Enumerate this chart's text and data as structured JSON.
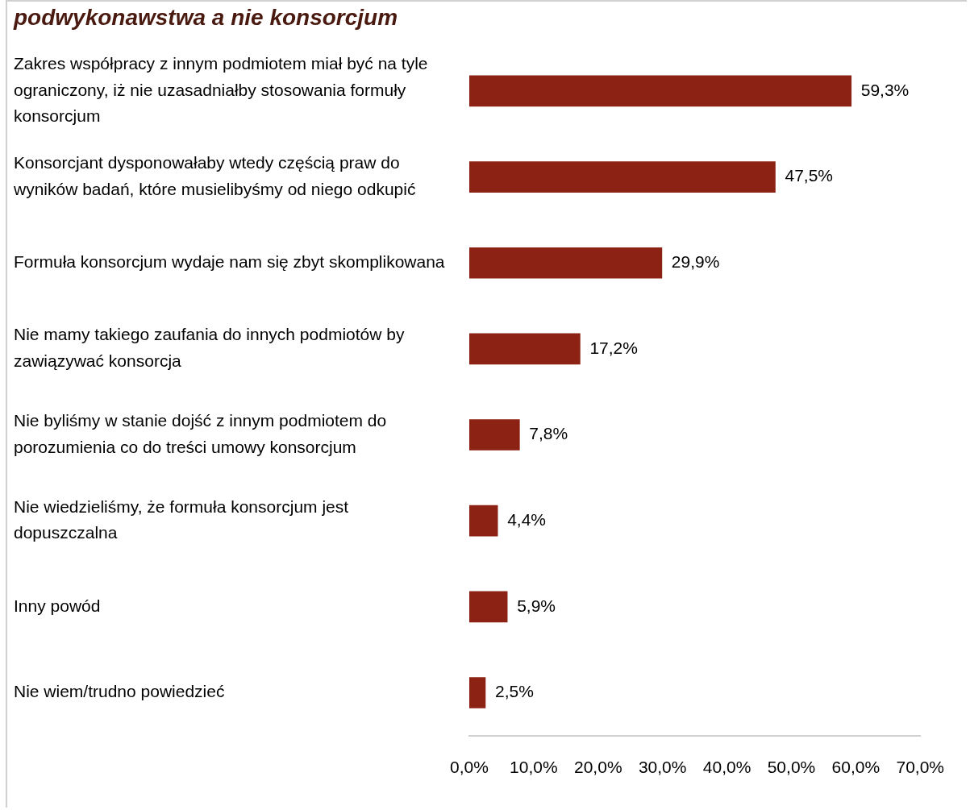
{
  "chart_data": {
    "type": "bar",
    "orientation": "horizontal",
    "title": "podwykonawstwa a nie konsorcjum",
    "categories": [
      "Zakres współpracy z innym podmiotem miał być na tyle ograniczony, iż nie uzasadniałby stosowania formuły konsorcjum",
      "Konsorcjant dysponowałaby wtedy częścią praw do wyników badań, które musielibyśmy od niego odkupić",
      "Formuła konsorcjum wydaje nam się zbyt skomplikowana",
      "Nie mamy takiego zaufania do innych podmiotów by zawiązywać konsorcja",
      "Nie byliśmy w stanie dojść z innym podmiotem do porozumienia co do treści umowy konsorcjum",
      "Nie wiedzieliśmy, że formuła konsorcjum jest dopuszczalna",
      "Inny powód",
      "Nie wiem/trudno powiedzieć"
    ],
    "values": [
      59.3,
      47.5,
      29.9,
      17.2,
      7.8,
      4.4,
      5.9,
      2.5
    ],
    "value_labels": [
      "59,3%",
      "47,5%",
      "29,9%",
      "17,2%",
      "7,8%",
      "4,4%",
      "5,9%",
      "2,5%"
    ],
    "color": "#8b2214",
    "xlim": [
      0,
      70
    ],
    "xticks": [
      {
        "value": 0,
        "label": "0,0%"
      },
      {
        "value": 10,
        "label": "10,0%"
      },
      {
        "value": 20,
        "label": "20,0%"
      },
      {
        "value": 30,
        "label": "30,0%"
      },
      {
        "value": 40,
        "label": "40,0%"
      },
      {
        "value": 50,
        "label": "50,0%"
      },
      {
        "value": 60,
        "label": "60,0%"
      },
      {
        "value": 70,
        "label": "70,0%"
      }
    ],
    "grid": false,
    "legend": false
  }
}
